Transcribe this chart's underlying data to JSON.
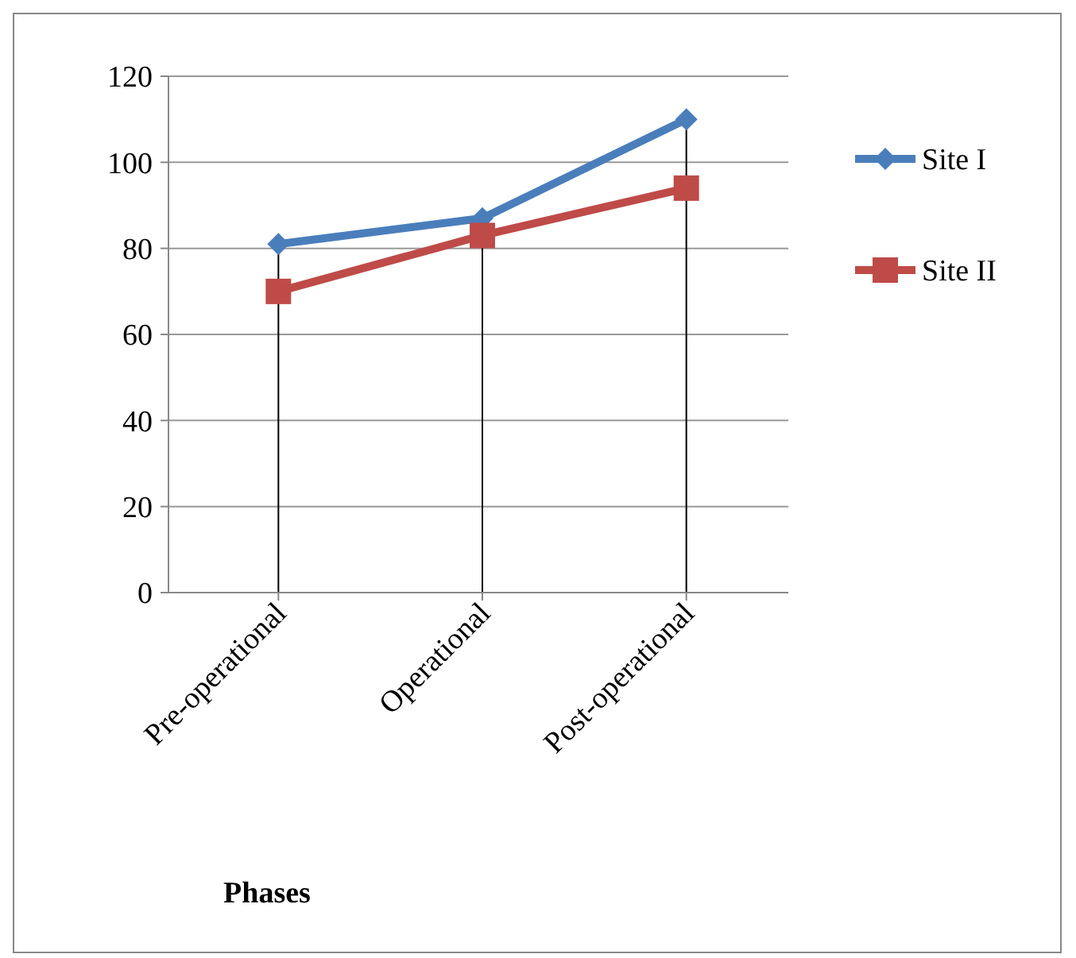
{
  "chart_data": {
    "type": "line",
    "xlabel": "Phases",
    "categories": [
      "Pre-operational",
      "Operational",
      "Post-operational"
    ],
    "series": [
      {
        "name": "Site I",
        "color": "#4a7ebb",
        "values": [
          81,
          87,
          110
        ],
        "marker": "diamond",
        "errors": [
          [
            0,
            81
          ],
          [
            0,
            87
          ],
          [
            0,
            110
          ]
        ]
      },
      {
        "name": "Site II",
        "color": "#be4b48",
        "values": [
          70,
          83,
          94
        ],
        "marker": "square"
      }
    ],
    "ylim": [
      0,
      120
    ],
    "yticks": [
      0,
      20,
      40,
      60,
      80,
      100,
      120
    ],
    "grid": "y",
    "legend": "right"
  }
}
